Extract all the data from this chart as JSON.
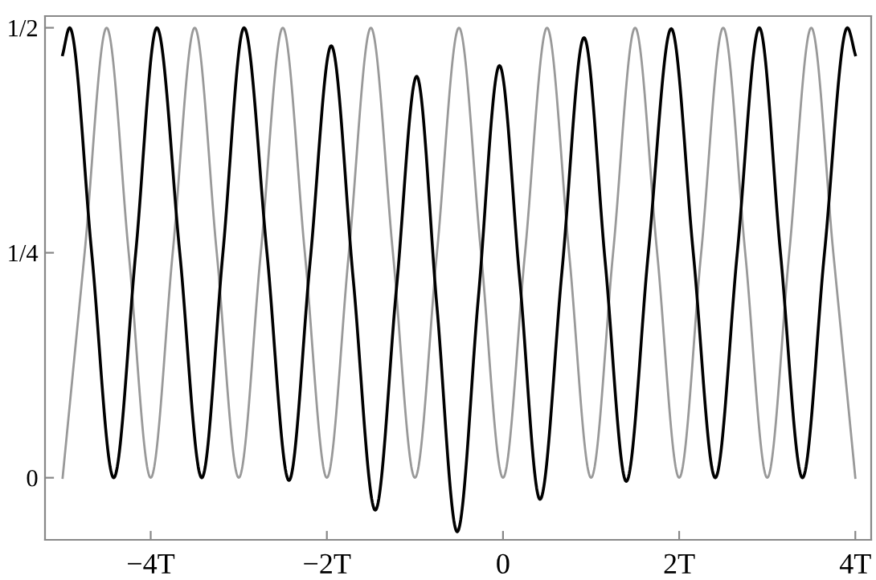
{
  "chart_data": {
    "type": "line",
    "xlim": [
      -5.2,
      4.18
    ],
    "ylim": [
      -0.069,
      0.513
    ],
    "xticks": [
      {
        "value": -4,
        "label": "−4T"
      },
      {
        "value": -2,
        "label": "−2T"
      },
      0,
      {
        "value": 2,
        "label": "2T"
      },
      {
        "value": 4,
        "label": "4T"
      }
    ],
    "yticks": [
      0,
      {
        "value": 0.25,
        "label": "1/4"
      },
      {
        "value": 0.5,
        "label": "1/2"
      }
    ],
    "grid": false,
    "legend": false,
    "marker": "none",
    "line_style": "solid",
    "series": [
      {
        "color": "#999999",
        "x": [
          -5,
          -4.75,
          -4.5,
          -4.25,
          -4,
          -3.75,
          -3.5,
          -3.25,
          -3,
          -2.75,
          -2.5,
          -2.25,
          -2,
          -1.75,
          -1.5,
          -1.25,
          -1,
          -0.75,
          -0.5,
          -0.25,
          0,
          0.25,
          0.5,
          0.75,
          1,
          1.25,
          1.5,
          1.75,
          2,
          2.25,
          2.5,
          2.75,
          3,
          3.25,
          3.5,
          3.75,
          4
        ],
        "values": [
          0,
          0.25,
          0.5,
          0.25,
          0,
          0.25,
          0.5,
          0.25,
          0,
          0.25,
          0.5,
          0.25,
          0,
          0.25,
          0.5,
          0.25,
          0,
          0.25,
          0.5,
          0.25,
          0,
          0.25,
          0.5,
          0.25,
          0,
          0.25,
          0.5,
          0.25,
          0,
          0.25,
          0.5,
          0.25,
          0,
          0.25,
          0.5,
          0.25,
          0
        ]
      },
      {
        "color": "#000000",
        "x": [
          -5.0,
          -4.92,
          -4.67,
          -4.42,
          -4.17,
          -3.93,
          -3.67,
          -3.42,
          -3.18,
          -2.94,
          -2.68,
          -2.43,
          -2.19,
          -1.95,
          -1.7,
          -1.45,
          -1.21,
          -0.98,
          -0.75,
          -0.52,
          -0.28,
          -0.04,
          0.19,
          0.42,
          0.67,
          0.92,
          1.16,
          1.4,
          1.65,
          1.91,
          2.16,
          2.41,
          2.66,
          2.91,
          3.15,
          3.4,
          3.65,
          3.91,
          4.0
        ],
        "values": [
          0.47,
          0.5,
          0.25,
          0.0,
          0.25,
          0.5,
          0.25,
          0.0,
          0.25,
          0.5,
          0.25,
          -0.003,
          0.24,
          0.48,
          0.22,
          -0.036,
          0.21,
          0.446,
          0.19,
          -0.06,
          0.2,
          0.458,
          0.22,
          -0.024,
          0.23,
          0.489,
          0.24,
          -0.004,
          0.25,
          0.499,
          0.25,
          0.0,
          0.25,
          0.5,
          0.25,
          0.0,
          0.25,
          0.5,
          0.47
        ]
      }
    ]
  }
}
